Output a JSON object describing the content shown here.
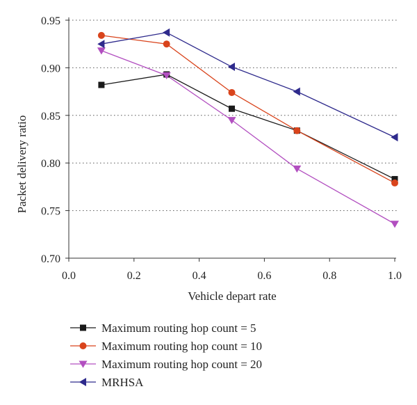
{
  "chart_data": {
    "type": "line",
    "title": "",
    "xlabel": "Vehicle depart rate",
    "ylabel": "Packet delivery ratio",
    "xlim": [
      0.0,
      1.0
    ],
    "ylim": [
      0.7,
      0.95
    ],
    "xticks": [
      "0.0",
      "0.2",
      "0.4",
      "0.6",
      "0.8",
      "1.0"
    ],
    "yticks": [
      "0.70",
      "0.75",
      "0.80",
      "0.85",
      "0.90",
      "0.95"
    ],
    "grid": "horizontal dotted",
    "legend_position": "bottom",
    "x": [
      0.1,
      0.3,
      0.5,
      0.7,
      1.0
    ],
    "series": [
      {
        "name": "Maximum routing hop count = 5",
        "color": "#1a1a1a",
        "marker": "square",
        "values": [
          0.882,
          0.893,
          0.857,
          0.834,
          0.783
        ]
      },
      {
        "name": "Maximum routing hop count = 10",
        "color": "#d9441c",
        "marker": "circle",
        "values": [
          0.934,
          0.925,
          0.874,
          0.834,
          0.779
        ]
      },
      {
        "name": "Maximum routing hop count = 20",
        "color": "#b24fc0",
        "marker": "triangle-down",
        "values": [
          0.918,
          0.892,
          0.845,
          0.794,
          0.736
        ]
      },
      {
        "name": "MRHSA",
        "color": "#2e2a8c",
        "marker": "triangle-left",
        "values": [
          0.925,
          0.937,
          0.901,
          0.875,
          0.827
        ]
      }
    ]
  }
}
